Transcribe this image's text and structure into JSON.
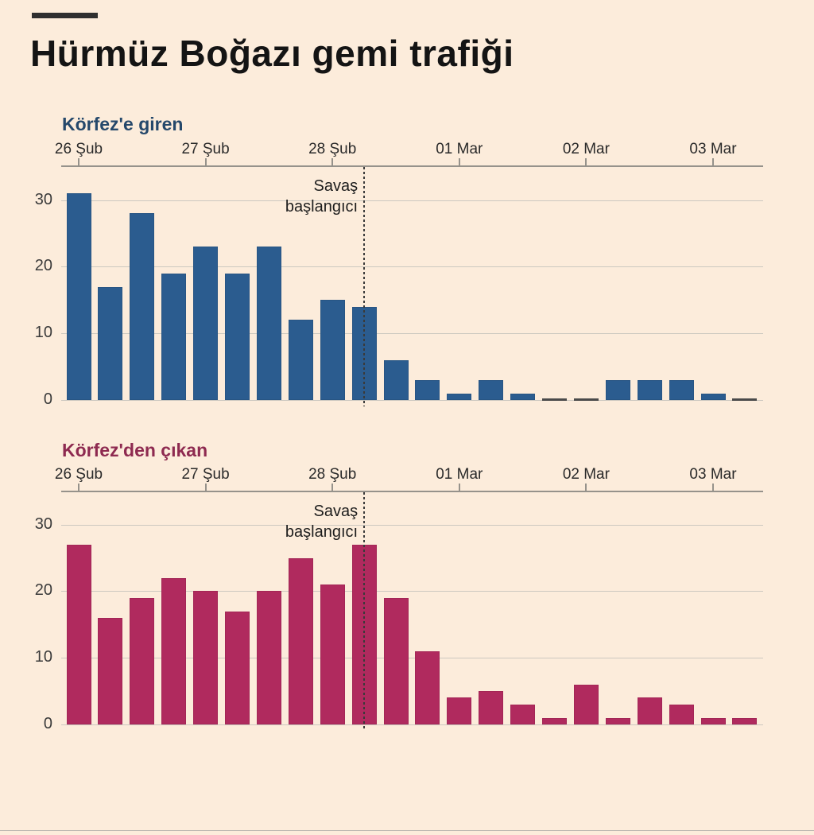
{
  "page": {
    "background_color": "#fcecdb",
    "divider_color": "#b5b1ab"
  },
  "header": {
    "title": "Hürmüz Boğazı gemi trafiği"
  },
  "annotation_label": "Savaş başlangıcı",
  "chart_data": [
    {
      "type": "bar",
      "title": "Körfez'e giren",
      "title_color": "#25486b",
      "bar_color": "#2b5c8f",
      "bar_border_color": "#1e4064",
      "x_tick_labels": [
        "26 Şub",
        "27 Şub",
        "28 Şub",
        "01 Mar",
        "02 Mar",
        "03 Mar"
      ],
      "bars_per_day": 4,
      "values": [
        31,
        17,
        28,
        19,
        23,
        19,
        23,
        12,
        15,
        14,
        6,
        3,
        1,
        3,
        1,
        0,
        0,
        3,
        3,
        3,
        1,
        0
      ],
      "y_ticks": [
        0,
        10,
        20,
        30
      ],
      "ylim": [
        0,
        35
      ],
      "grid": true,
      "legend": "none",
      "annotation": {
        "lines": [
          "Savaş",
          "başlangıcı"
        ],
        "at_bar_index": 9
      }
    },
    {
      "type": "bar",
      "title": "Körfez'den çıkan",
      "title_color": "#8e2a50",
      "bar_color": "#b02a5e",
      "bar_border_color": "#7c1c41",
      "x_tick_labels": [
        "26 Şub",
        "27 Şub",
        "28 Şub",
        "01 Mar",
        "02 Mar",
        "03 Mar"
      ],
      "bars_per_day": 4,
      "values": [
        27,
        16,
        19,
        22,
        20,
        17,
        20,
        25,
        21,
        27,
        19,
        11,
        4,
        5,
        3,
        1,
        6,
        1,
        4,
        3,
        1,
        1
      ],
      "y_ticks": [
        0,
        10,
        20,
        30
      ],
      "ylim": [
        0,
        35
      ],
      "grid": true,
      "legend": "none",
      "annotation": {
        "lines": [
          "Savaş",
          "başlangıcı"
        ],
        "at_bar_index": 9
      }
    }
  ]
}
